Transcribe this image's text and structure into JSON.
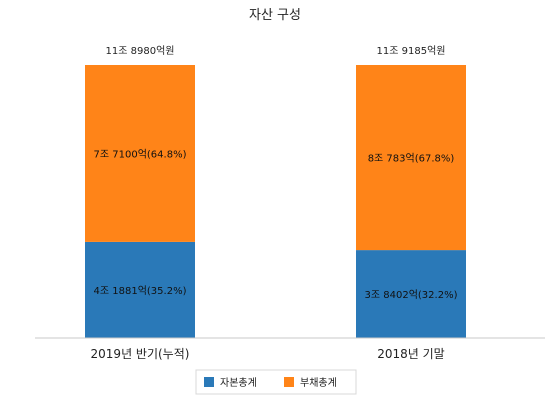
{
  "chart_data": {
    "type": "bar",
    "stacked": true,
    "title": "자산 구성",
    "categories": [
      "2019년 반기(누적)",
      "2018년 기말"
    ],
    "series": [
      {
        "name": "자본총계",
        "values": [
          35.2,
          32.2
        ],
        "labels": [
          "4조 1881억(35.2%)",
          "3조 8402억(32.2%)"
        ],
        "color": "#2a79b8"
      },
      {
        "name": "부채총계",
        "values": [
          64.8,
          67.8
        ],
        "labels": [
          "7조 7100억(64.8%)",
          "8조 783억(67.8%)"
        ],
        "color": "#ff8418"
      }
    ],
    "totals": [
      "11조 8980억원",
      "11조 9185억원"
    ],
    "ylim": [
      0,
      100
    ],
    "grid": false,
    "legend": "bottom"
  }
}
